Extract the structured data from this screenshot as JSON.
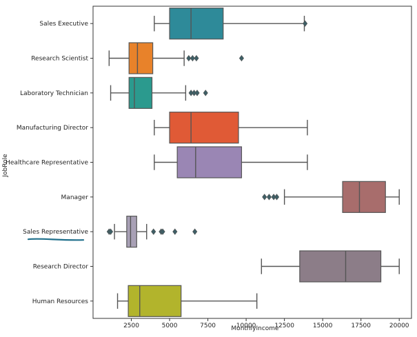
{
  "chart_data": {
    "type": "box",
    "orientation": "horizontal",
    "title": "",
    "xlabel": "MonthlyIncome",
    "ylabel": "JobRole",
    "xlim": [
      0,
      20800
    ],
    "xticks": [
      2500,
      5000,
      7500,
      10000,
      12500,
      15000,
      17500,
      20000
    ],
    "xtick_labels": [
      "2500",
      "5000",
      "7500",
      "10000",
      "12500",
      "15000",
      "17500",
      "20000"
    ],
    "grid": false,
    "categories": [
      {
        "name": "Sales Executive",
        "color": "#2e8a99",
        "whisker_low": 4000,
        "q1": 5000,
        "median": 6400,
        "q3": 8500,
        "whisker_high": 13800,
        "outliers": [
          13850
        ]
      },
      {
        "name": "Research Scientist",
        "color": "#e8822a",
        "whisker_low": 1050,
        "q1": 2350,
        "median": 2900,
        "q3": 3900,
        "whisker_high": 5950,
        "outliers": [
          6250,
          6500,
          6750,
          9700
        ]
      },
      {
        "name": "Laboratory Technician",
        "color": "#2b9a8e",
        "whisker_low": 1150,
        "q1": 2350,
        "median": 2700,
        "q3": 3850,
        "whisker_high": 6050,
        "outliers": [
          6400,
          6600,
          6800,
          7350
        ]
      },
      {
        "name": "Manufacturing Director",
        "color": "#e05a36",
        "whisker_low": 4000,
        "q1": 5000,
        "median": 6400,
        "q3": 9500,
        "whisker_high": 14000,
        "outliers": []
      },
      {
        "name": "Healthcare Representative",
        "color": "#9a86b4",
        "whisker_low": 4000,
        "q1": 5500,
        "median": 6700,
        "q3": 9700,
        "whisker_high": 14000,
        "outliers": []
      },
      {
        "name": "Manager",
        "color": "#a86d6c",
        "whisker_low": 12500,
        "q1": 16300,
        "median": 17400,
        "q3": 19100,
        "whisker_high": 20000,
        "outliers": [
          11200,
          11500,
          11800,
          12000
        ]
      },
      {
        "name": "Sales Representative",
        "color": "#a8a0b5",
        "whisker_low": 1400,
        "q1": 2200,
        "median": 2450,
        "q3": 2850,
        "whisker_high": 3500,
        "outliers": [
          1050,
          1150,
          3950,
          4450,
          4550,
          5350,
          6650
        ]
      },
      {
        "name": "Research Director",
        "color": "#8c7d88",
        "whisker_low": 11000,
        "q1": 13500,
        "median": 16500,
        "q3": 18800,
        "whisker_high": 20000,
        "outliers": []
      },
      {
        "name": "Human Resources",
        "color": "#b2b42c",
        "whisker_low": 1600,
        "q1": 2300,
        "median": 3050,
        "q3": 5750,
        "whisker_high": 10700,
        "outliers": []
      }
    ]
  }
}
